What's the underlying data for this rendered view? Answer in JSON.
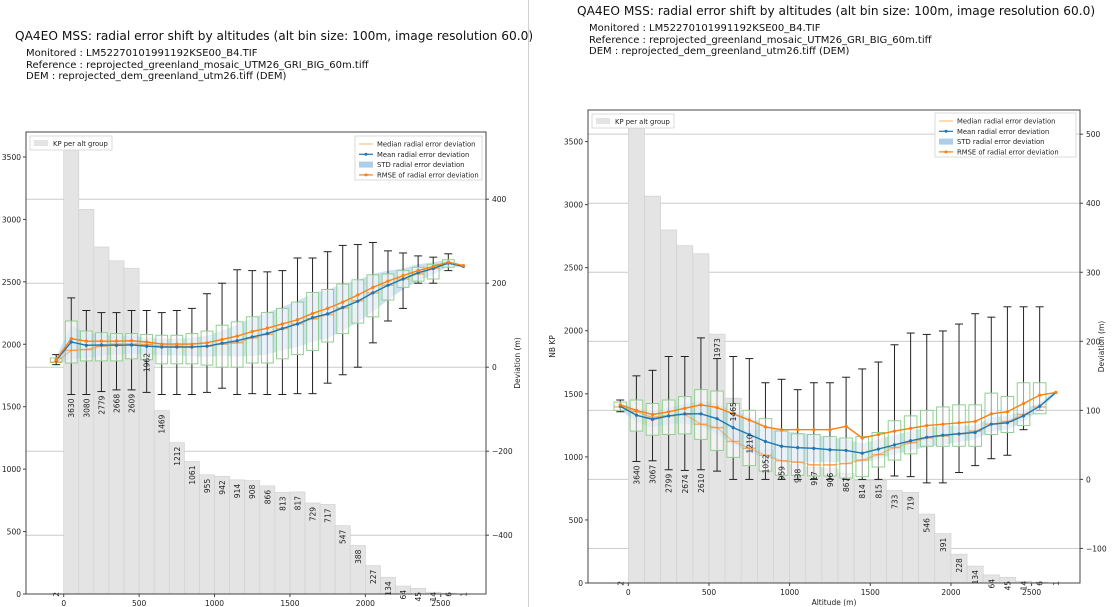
{
  "panels": [
    {
      "title": "QA4EO MSS: radial error shift by altitudes (alt bin size: 100m, image resolution 60.0)",
      "meta": [
        "Monitored : LM52270101991192KSE00_B4.TIF",
        "Reference : reprojected_greenland_mosaic_UTM26_GRI_BIG_60m.tiff",
        "DEM : reprojected_dem_greenland_utm26.tiff (DEM)"
      ]
    },
    {
      "title": "QA4EO MSS: radial error shift by altitudes (alt bin size: 100m, image resolution 60.0)",
      "meta": [
        "Monitored : LM52270101991192KSE00_B4.TIF",
        "Reference : reprojected_greenland_mosaic_UTM26_GRI_BIG_60m.tiff",
        "DEM : reprojected_dem_greenland_utm26.tiff (DEM)"
      ]
    }
  ],
  "chart_data": [
    {
      "type": "bar",
      "title": "QA4EO MSS: radial error shift by altitudes (alt bin size: 100m, image resolution 60.0)",
      "xlabel": "",
      "ylabel": "",
      "y2label": "Deviation (m)",
      "xlim": [
        -250,
        2800
      ],
      "ylim": [
        0,
        3700
      ],
      "y2lim": [
        -540,
        560
      ],
      "xticks": [
        0,
        500,
        1000,
        1500,
        2000,
        2500
      ],
      "yticks": [
        0,
        500,
        1000,
        1500,
        2000,
        2500,
        3000,
        3500
      ],
      "y2ticks": [
        -400,
        -200,
        0,
        200,
        400
      ],
      "grid": "secondary-axis horizontal",
      "legend_bars": {
        "label": "KP per alt group",
        "placement": "top-left"
      },
      "legend_lines": {
        "labels": [
          "Median radial error deviation",
          "Mean radial error deviation",
          "STD radial error deviation",
          "RMSE of radial error deviation"
        ],
        "placement": "top-right"
      },
      "colors": {
        "bars": "#e4e4e4",
        "median": "#ff7f0e",
        "mean": "#1f77b4",
        "std": "#aecde8",
        "rmse": "#ff7f0e",
        "box": "#8fcf8f",
        "whisker": "#222222"
      },
      "bins_x": [
        -50,
        50,
        150,
        250,
        350,
        450,
        550,
        650,
        750,
        850,
        950,
        1050,
        1150,
        1250,
        1350,
        1450,
        1550,
        1650,
        1750,
        1850,
        1950,
        2050,
        2150,
        2250,
        2350,
        2450,
        2550,
        2650
      ],
      "kp_counts": [
        2,
        3630,
        3080,
        2779,
        2668,
        2609,
        1962,
        1469,
        1212,
        1061,
        955,
        942,
        914,
        908,
        866,
        813,
        817,
        729,
        717,
        547,
        388,
        227,
        134,
        64,
        45,
        14,
        6,
        1
      ],
      "mean": [
        16,
        60,
        52,
        53,
        52,
        53,
        50,
        48,
        48,
        48,
        50,
        57,
        63,
        72,
        80,
        92,
        103,
        118,
        127,
        142,
        157,
        177,
        195,
        210,
        225,
        235,
        248,
        240
      ],
      "median": [
        12,
        40,
        42,
        50,
        55,
        55,
        54,
        50,
        50,
        49,
        50,
        55,
        58,
        70,
        78,
        92,
        103,
        115,
        125,
        141,
        158,
        177,
        195,
        210,
        222,
        235,
        247,
        240
      ],
      "rmse": [
        18,
        68,
        62,
        62,
        62,
        63,
        60,
        55,
        55,
        55,
        58,
        66,
        74,
        85,
        93,
        103,
        113,
        128,
        140,
        155,
        172,
        190,
        205,
        218,
        230,
        240,
        250,
        242
      ],
      "std": [
        8,
        40,
        30,
        25,
        22,
        22,
        20,
        20,
        20,
        22,
        25,
        30,
        38,
        45,
        50,
        52,
        55,
        58,
        58,
        55,
        50,
        45,
        35,
        25,
        20,
        15,
        8,
        2
      ],
      "box_q1": [
        12,
        10,
        15,
        15,
        15,
        20,
        18,
        8,
        8,
        8,
        5,
        0,
        0,
        10,
        10,
        20,
        30,
        40,
        60,
        80,
        105,
        120,
        160,
        190,
        205,
        210,
        238,
        null
      ],
      "box_q3": [
        22,
        110,
        86,
        82,
        80,
        80,
        78,
        76,
        76,
        80,
        86,
        100,
        108,
        120,
        130,
        140,
        155,
        178,
        185,
        198,
        208,
        220,
        222,
        230,
        238,
        245,
        256,
        null
      ],
      "whisker_low": [
        6,
        -65,
        -65,
        -58,
        -54,
        -54,
        -60,
        -65,
        -65,
        -65,
        -60,
        -50,
        -65,
        -63,
        -65,
        -65,
        -63,
        -63,
        -38,
        -18,
        0,
        58,
        110,
        140,
        200,
        200,
        230,
        null
      ],
      "whisker_high": [
        30,
        165,
        135,
        130,
        130,
        135,
        135,
        130,
        135,
        140,
        175,
        200,
        232,
        230,
        227,
        230,
        260,
        260,
        275,
        290,
        292,
        297,
        277,
        272,
        265,
        262,
        270,
        null
      ]
    },
    {
      "type": "bar",
      "title": "QA4EO MSS: radial error shift by altitudes (alt bin size: 100m, image resolution 60.0)",
      "xlabel": "Altitude (m)",
      "ylabel": "NB KP",
      "y2label": "Deviation (m)",
      "xlim": [
        -250,
        2800
      ],
      "ylim": [
        0,
        3750
      ],
      "y2lim": [
        -150,
        535
      ],
      "xticks": [
        0,
        500,
        1000,
        1500,
        2000,
        2500
      ],
      "yticks": [
        0,
        500,
        1000,
        1500,
        2000,
        2500,
        3000,
        3500
      ],
      "y2ticks": [
        -100,
        0,
        100,
        200,
        300,
        400,
        500
      ],
      "grid": "secondary-axis horizontal",
      "legend_bars": {
        "label": "KP per alt group",
        "placement": "top-left"
      },
      "legend_lines": {
        "labels": [
          "Median radial error deviation",
          "Mean radial error deviation",
          "STD radial error deviation",
          "RMSE of radial error deviation"
        ],
        "placement": "top-right"
      },
      "colors": {
        "bars": "#e4e4e4",
        "median": "#ff7f0e",
        "mean": "#1f77b4",
        "std": "#aecde8",
        "rmse": "#ff7f0e",
        "box": "#8fcf8f",
        "whisker": "#222222"
      },
      "bins_x": [
        -50,
        50,
        150,
        250,
        350,
        450,
        550,
        650,
        750,
        850,
        950,
        1050,
        1150,
        1250,
        1350,
        1450,
        1550,
        1650,
        1750,
        1850,
        1950,
        2050,
        2150,
        2250,
        2350,
        2450,
        2550,
        2650
      ],
      "kp_counts": [
        2,
        3640,
        3067,
        2799,
        2674,
        2610,
        1973,
        1465,
        1210,
        1052,
        959,
        938,
        917,
        906,
        867,
        814,
        815,
        733,
        719,
        546,
        391,
        228,
        134,
        64,
        45,
        14,
        6,
        1
      ],
      "mean": [
        106,
        93,
        87,
        92,
        95,
        95,
        88,
        75,
        65,
        55,
        48,
        46,
        45,
        43,
        42,
        38,
        44,
        50,
        56,
        61,
        64,
        66,
        68,
        80,
        82,
        92,
        106,
        126
      ],
      "median": [
        105,
        98,
        90,
        92,
        94,
        80,
        75,
        55,
        45,
        35,
        27,
        25,
        21,
        21,
        23,
        28,
        36,
        46,
        53,
        60,
        63,
        66,
        70,
        80,
        84,
        94,
        105,
        126
      ],
      "rmse": [
        108,
        100,
        94,
        98,
        103,
        108,
        104,
        95,
        86,
        76,
        72,
        72,
        72,
        72,
        77,
        60,
        65,
        70,
        74,
        78,
        80,
        82,
        84,
        95,
        98,
        110,
        122,
        126
      ],
      "std": [
        5,
        10,
        12,
        12,
        14,
        18,
        22,
        24,
        26,
        24,
        22,
        22,
        20,
        18,
        16,
        14,
        14,
        14,
        14,
        14,
        14,
        12,
        10,
        10,
        10,
        8,
        6,
        2
      ],
      "box_q1": [
        100,
        70,
        64,
        65,
        66,
        58,
        42,
        32,
        20,
        12,
        6,
        6,
        5,
        5,
        2,
        4,
        18,
        28,
        37,
        48,
        48,
        48,
        48,
        65,
        68,
        78,
        95,
        null
      ],
      "box_q3": [
        112,
        115,
        110,
        115,
        120,
        130,
        128,
        110,
        100,
        88,
        70,
        66,
        65,
        62,
        60,
        62,
        68,
        85,
        92,
        100,
        105,
        108,
        108,
        125,
        120,
        140,
        140,
        null
      ],
      "whisker_low": [
        98,
        26,
        27,
        14,
        13,
        14,
        12,
        0,
        0,
        0,
        0,
        0,
        0,
        0,
        0,
        0,
        0,
        5,
        4,
        -5,
        -5,
        10,
        20,
        30,
        35,
        72,
        100,
        null
      ],
      "whisker_high": [
        115,
        150,
        158,
        178,
        178,
        205,
        175,
        178,
        175,
        140,
        145,
        130,
        140,
        140,
        148,
        160,
        170,
        195,
        212,
        210,
        215,
        225,
        240,
        235,
        250,
        250,
        250,
        null
      ]
    }
  ]
}
